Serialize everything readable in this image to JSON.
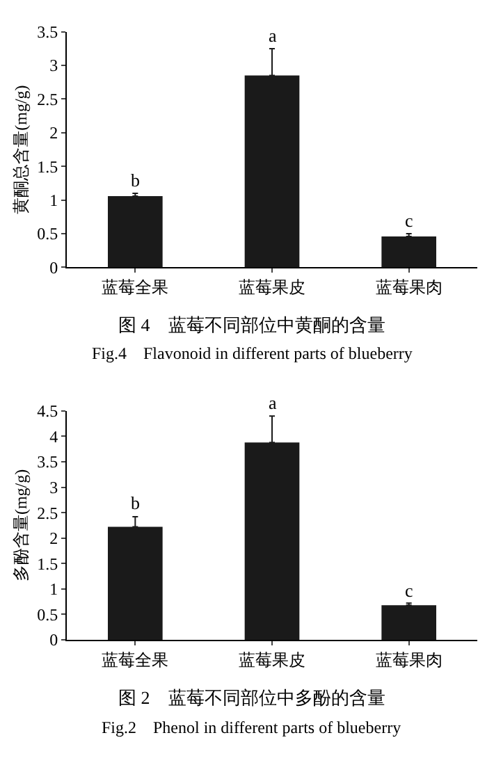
{
  "chart_data": [
    {
      "type": "bar",
      "title": "图 4　蓝莓不同部位中黄酮的含量",
      "subtitle": "Fig.4　Flavonoid in different parts of blueberry",
      "ylabel": "黄酮总含量(mg/g)",
      "categories": [
        "蓝莓全果",
        "蓝莓果皮",
        "蓝莓果肉"
      ],
      "values": [
        1.06,
        2.85,
        0.46
      ],
      "errors": [
        0.04,
        0.4,
        0.04
      ],
      "color": "#1a1a1a",
      "ylim": [
        0,
        3.5
      ],
      "yticks": [
        0,
        0.5,
        1,
        1.5,
        2,
        2.5,
        3,
        3.5
      ],
      "annotations": [
        {
          "text": "b",
          "x": "蓝莓全果",
          "y": 1.1
        },
        {
          "text": "a",
          "x": "蓝莓果皮",
          "y": 3.25
        },
        {
          "text": "c",
          "x": "蓝莓果肉",
          "y": 0.5
        }
      ]
    },
    {
      "type": "bar",
      "title": "图 2　蓝莓不同部位中多酚的含量",
      "subtitle": "Fig.2　Phenol in different parts of blueberry",
      "ylabel": "多酚含量(mg/g)",
      "categories": [
        "蓝莓全果",
        "蓝莓果皮",
        "蓝莓果肉"
      ],
      "values": [
        2.22,
        3.88,
        0.68
      ],
      "errors": [
        0.2,
        0.52,
        0.04
      ],
      "color": "#1a1a1a",
      "ylim": [
        0,
        4.5
      ],
      "yticks": [
        0,
        0.5,
        1,
        1.5,
        2,
        2.5,
        3,
        3.5,
        4,
        4.5
      ],
      "annotations": [
        {
          "text": "b",
          "x": "蓝莓全果",
          "y": 2.42
        },
        {
          "text": "a",
          "x": "蓝莓果皮",
          "y": 4.4
        },
        {
          "text": "c",
          "x": "蓝莓果肉",
          "y": 0.72
        }
      ]
    }
  ]
}
